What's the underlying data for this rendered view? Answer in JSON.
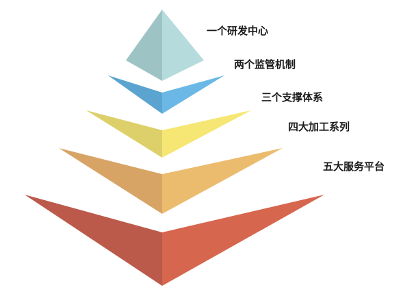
{
  "diagram": {
    "tiers": [
      {
        "label": "一个研发中心",
        "left_color": "#9ec3c5",
        "right_color": "#b6dbdc"
      },
      {
        "label": "两个监管机制",
        "left_color": "#5aa4cf",
        "right_color": "#6bb8e6"
      },
      {
        "label": "三个支撑体系",
        "left_color": "#ddd06a",
        "right_color": "#f6e673"
      },
      {
        "label": "四大加工系列",
        "left_color": "#d8a466",
        "right_color": "#ecbc6e"
      },
      {
        "label": "五大服务平台",
        "left_color": "#bb5a4a",
        "right_color": "#d7664e"
      }
    ]
  }
}
